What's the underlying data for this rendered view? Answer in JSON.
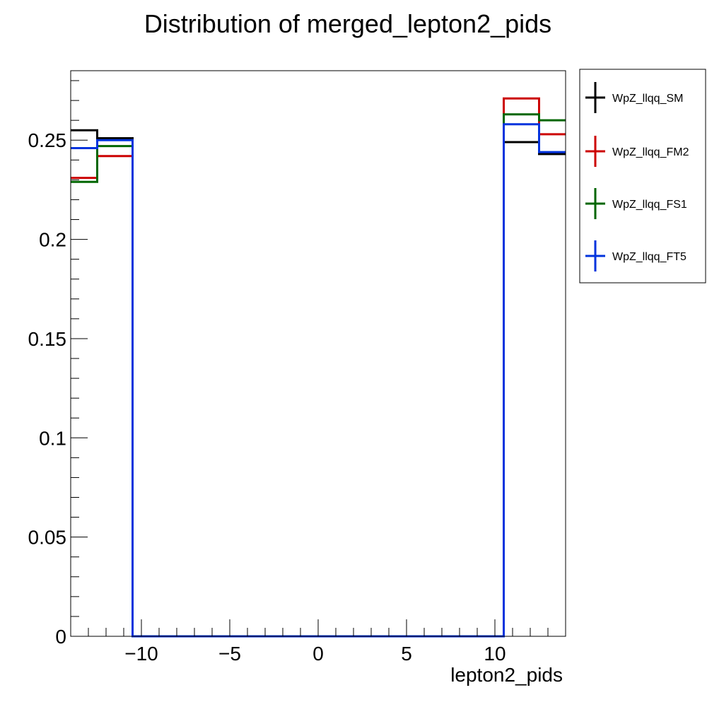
{
  "chart_data": {
    "type": "histogram",
    "title": "Distribution of merged_lepton2_pids",
    "xlabel": "lepton2_pids",
    "ylabel": "",
    "xlim": [
      -14,
      14
    ],
    "ylim": [
      0,
      0.285
    ],
    "x_ticks": [
      -10,
      -5,
      0,
      5,
      10
    ],
    "x_tick_labels": [
      "−10",
      "−5",
      "0",
      "5",
      "10"
    ],
    "y_ticks": [
      0,
      0.05,
      0.1,
      0.15,
      0.2,
      0.25
    ],
    "y_tick_labels": [
      "0",
      "0.05",
      "0.1",
      "0.15",
      "0.2",
      "0.25"
    ],
    "bin_edges": [
      -14,
      -12.5,
      -10.5,
      10.5,
      12.5,
      14
    ],
    "legend_position": "top-right-outside",
    "series": [
      {
        "name": "WpZ_llqq_SM",
        "color": "#000000",
        "values": [
          0.255,
          0.251,
          0,
          0.249,
          0.243
        ]
      },
      {
        "name": "WpZ_llqq_FM2",
        "color": "#cc0000",
        "values": [
          0.231,
          0.242,
          0,
          0.271,
          0.253
        ]
      },
      {
        "name": "WpZ_llqq_FS1",
        "color": "#006600",
        "values": [
          0.229,
          0.247,
          0,
          0.263,
          0.26
        ]
      },
      {
        "name": "WpZ_llqq_FT5",
        "color": "#0033dd",
        "values": [
          0.246,
          0.25,
          0,
          0.258,
          0.244
        ]
      }
    ]
  }
}
